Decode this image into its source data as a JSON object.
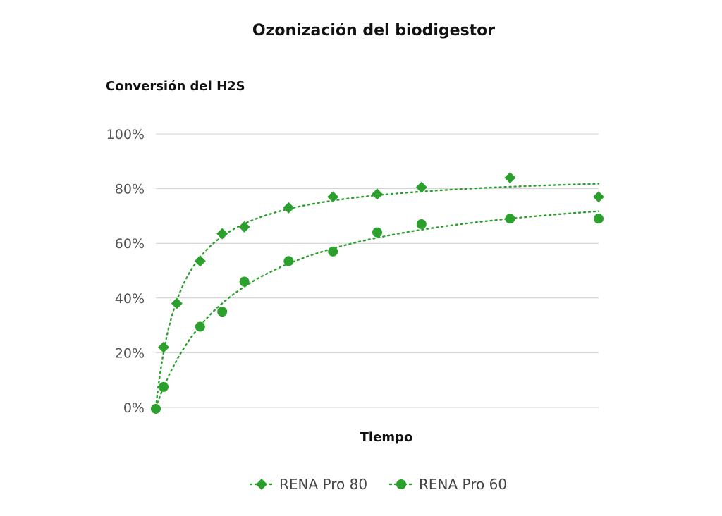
{
  "chart_data": {
    "type": "scatter",
    "title": "Ozonización del biodigestor",
    "ylabel": "Conversión del H2S",
    "xlabel": "Tiempo",
    "ylim": [
      0,
      100
    ],
    "yticks": [
      "0%",
      "20%",
      "40%",
      "60%",
      "80%",
      "100%"
    ],
    "ytick_values": [
      0,
      20,
      40,
      60,
      80,
      100
    ],
    "xlim": [
      0,
      20
    ],
    "grid": true,
    "legend_position": "bottom",
    "series": [
      {
        "name": "RENA Pro 80",
        "marker": "diamond",
        "color": "#2ca02c",
        "trendline": true,
        "x": [
          0.35,
          0.95,
          2.0,
          3.0,
          4.0,
          6.0,
          8.0,
          10.0,
          12.0,
          16.0,
          20.0
        ],
        "y": [
          22,
          38,
          53.5,
          63.5,
          66,
          73,
          77,
          78,
          80.5,
          84,
          77
        ]
      },
      {
        "name": "RENA Pro 60",
        "marker": "circle",
        "color": "#2ca02c",
        "trendline": true,
        "x": [
          0,
          0.35,
          2.0,
          3.0,
          4.0,
          6.0,
          8.0,
          10.0,
          12.0,
          16.0,
          20.0
        ],
        "y": [
          -0.5,
          7.5,
          29.5,
          35,
          46,
          53.5,
          57,
          64,
          67,
          69,
          69
        ]
      }
    ]
  }
}
